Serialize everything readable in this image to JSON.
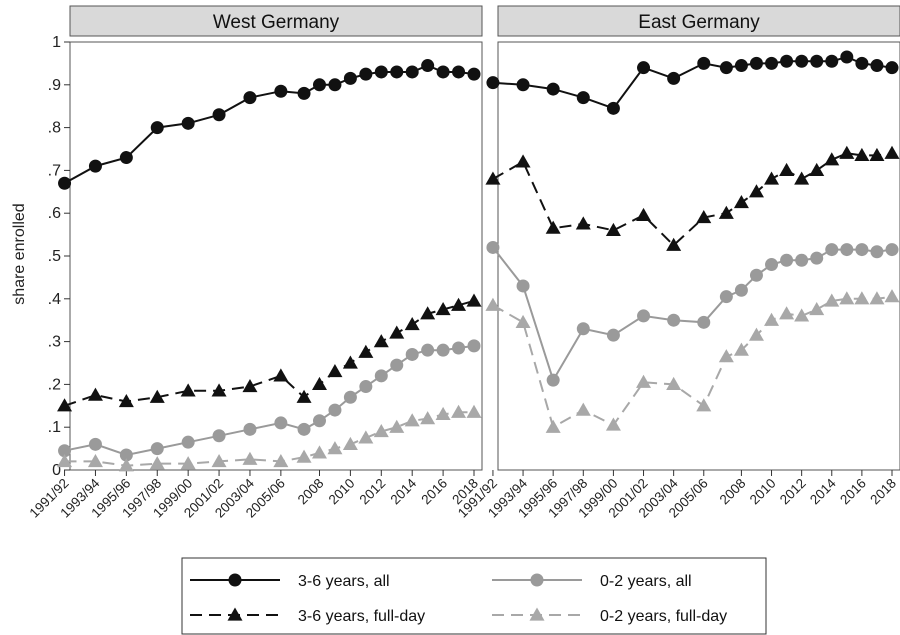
{
  "chart_data": {
    "type": "line",
    "ylabel": "share enrolled",
    "ylim": [
      0,
      1
    ],
    "yticks": [
      "0",
      ".1",
      ".2",
      ".3",
      ".4",
      ".5",
      ".6",
      ".7",
      ".8",
      ".9",
      "1"
    ],
    "x_tick_labels": [
      "1991/92",
      "1993/94",
      "1995/96",
      "1997/98",
      "1999/00",
      "2001/02",
      "2003/04",
      "2005/06",
      "2008",
      "2010",
      "2012",
      "2014",
      "2016",
      "2018"
    ],
    "series_styles": [
      {
        "name": "3-6 years, all",
        "color": "#111111",
        "marker": "circle",
        "dash": "solid"
      },
      {
        "name": "3-6 years, full-day",
        "color": "#111111",
        "marker": "triangle",
        "dash": "dashed"
      },
      {
        "name": "0-2 years, all",
        "color": "#9a9a9a",
        "marker": "circle",
        "dash": "solid"
      },
      {
        "name": "0-2 years, full-day",
        "color": "#a8a8a8",
        "marker": "triangle",
        "dash": "dashed"
      }
    ],
    "panels": [
      {
        "title": "West Germany",
        "x": [
          "1991/92",
          "1993/94",
          "1995/96",
          "1997/98",
          "1999/00",
          "2001/02",
          "2003/04",
          "2005/06",
          "2007",
          "2008",
          "2009",
          "2010",
          "2011",
          "2012",
          "2013",
          "2014",
          "2015",
          "2016",
          "2017",
          "2018"
        ],
        "series": [
          {
            "name": "3-6 years, all",
            "values": [
              0.67,
              0.71,
              0.73,
              0.8,
              0.81,
              0.83,
              0.87,
              0.885,
              0.88,
              0.9,
              0.9,
              0.915,
              0.925,
              0.93,
              0.93,
              0.93,
              0.945,
              0.93,
              0.93,
              0.925
            ]
          },
          {
            "name": "3-6 years, full-day",
            "values": [
              0.15,
              0.175,
              0.16,
              0.17,
              0.185,
              0.185,
              0.195,
              0.22,
              0.17,
              0.2,
              0.23,
              0.25,
              0.275,
              0.3,
              0.32,
              0.34,
              0.365,
              0.375,
              0.385,
              0.395
            ]
          },
          {
            "name": "0-2 years, all",
            "values": [
              0.045,
              0.06,
              0.035,
              0.05,
              0.065,
              0.08,
              0.095,
              0.11,
              0.095,
              0.115,
              0.14,
              0.17,
              0.195,
              0.22,
              0.245,
              0.27,
              0.28,
              0.28,
              0.285,
              0.29
            ]
          },
          {
            "name": "0-2 years, full-day",
            "values": [
              0.02,
              0.02,
              0.01,
              0.015,
              0.015,
              0.02,
              0.025,
              0.02,
              0.03,
              0.04,
              0.05,
              0.06,
              0.075,
              0.09,
              0.1,
              0.115,
              0.12,
              0.13,
              0.135,
              0.135
            ]
          }
        ]
      },
      {
        "title": "East Germany",
        "x": [
          "1991/92",
          "1993/94",
          "1995/96",
          "1997/98",
          "1999/00",
          "2001/02",
          "2003/04",
          "2005/06",
          "2007",
          "2008",
          "2009",
          "2010",
          "2011",
          "2012",
          "2013",
          "2014",
          "2015",
          "2016",
          "2017",
          "2018"
        ],
        "series": [
          {
            "name": "3-6 years, all",
            "values": [
              0.905,
              0.9,
              0.89,
              0.87,
              0.845,
              0.94,
              0.915,
              0.95,
              0.94,
              0.945,
              0.95,
              0.95,
              0.955,
              0.955,
              0.955,
              0.955,
              0.965,
              0.95,
              0.945,
              0.94
            ]
          },
          {
            "name": "3-6 years, full-day",
            "values": [
              0.68,
              0.72,
              0.565,
              0.575,
              0.56,
              0.595,
              0.525,
              0.59,
              0.6,
              0.625,
              0.65,
              0.68,
              0.7,
              0.68,
              0.7,
              0.725,
              0.74,
              0.735,
              0.735,
              0.74
            ]
          },
          {
            "name": "0-2 years, all",
            "values": [
              0.52,
              0.43,
              0.21,
              0.33,
              0.315,
              0.36,
              0.35,
              0.345,
              0.405,
              0.42,
              0.455,
              0.48,
              0.49,
              0.49,
              0.495,
              0.515,
              0.515,
              0.515,
              0.51,
              0.515
            ]
          },
          {
            "name": "0-2 years, full-day",
            "values": [
              0.385,
              0.345,
              0.1,
              0.14,
              0.105,
              0.205,
              0.2,
              0.15,
              0.265,
              0.28,
              0.315,
              0.35,
              0.365,
              0.36,
              0.375,
              0.395,
              0.4,
              0.4,
              0.4,
              0.405
            ]
          }
        ]
      }
    ]
  }
}
